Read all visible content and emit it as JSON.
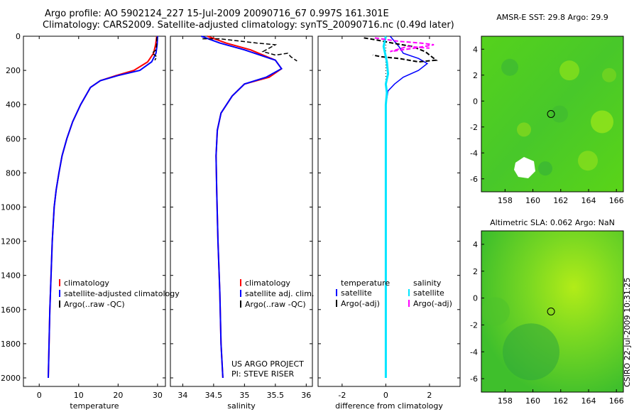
{
  "header": {
    "line1": "Argo profile: AO 5902124_227 15-Jul-2009 20090716_67 0.997S 161.301E",
    "line2": "Climatology: CARS2009. Satellite-adjusted climatology: synTS_20090716.nc (0.49d later)"
  },
  "side_label": "CSIRO 22-Jul-2009 10:31:25",
  "colors": {
    "climatology": "#ff0000",
    "satellite": "#0000ff",
    "argo": "#000000",
    "satellite_salinity": "#00e5ff",
    "argo_salinity": "#ff00ff"
  },
  "chart_data": [
    {
      "type": "line",
      "xlabel": "temperature",
      "ylabel": "",
      "xlim": [
        -4,
        32
      ],
      "ylim": [
        2050,
        0
      ],
      "xticks": [
        "0",
        "10",
        "20",
        "30"
      ],
      "yticks": [
        "0",
        "200",
        "400",
        "600",
        "800",
        "1000",
        "1200",
        "1400",
        "1600",
        "1800",
        "2000"
      ],
      "legend_placement": "lower-right",
      "legend": [
        "climatology",
        "satellite-adjusted climatology",
        "Argo(..raw -QC)"
      ],
      "series": [
        {
          "name": "climatology",
          "x": [
            29.8,
            29.5,
            29.0,
            27.5,
            24.0,
            19.5,
            15.5,
            13.0,
            10.5,
            8.5,
            7.0,
            5.8,
            5.0,
            4.3,
            3.8,
            3.3,
            3.0,
            2.7,
            2.5,
            2.3
          ],
          "y": [
            0,
            50,
            100,
            150,
            200,
            230,
            260,
            300,
            400,
            500,
            600,
            700,
            800,
            900,
            1000,
            1200,
            1400,
            1600,
            1800,
            2000
          ]
        },
        {
          "name": "satellite-adjusted climatology",
          "x": [
            30.0,
            29.9,
            29.6,
            28.5,
            25.5,
            20.0,
            15.5,
            13.0,
            10.5,
            8.5,
            7.0,
            5.8,
            5.0,
            4.3,
            3.8,
            3.3,
            3.0,
            2.7,
            2.5,
            2.3
          ],
          "y": [
            0,
            50,
            100,
            150,
            200,
            230,
            260,
            300,
            400,
            500,
            600,
            700,
            800,
            900,
            1000,
            1200,
            1400,
            1600,
            1800,
            2000
          ]
        },
        {
          "name": "Argo(..raw -QC)",
          "x": [
            29.8,
            29.8,
            29.6,
            28.6,
            29.3,
            29.8,
            29.3
          ],
          "y": [
            5,
            40,
            80,
            100,
            110,
            120,
            140
          ]
        }
      ]
    },
    {
      "type": "line",
      "xlabel": "salinity",
      "ylabel": "",
      "xlim": [
        33.8,
        36.1
      ],
      "ylim": [
        2050,
        0
      ],
      "xticks": [
        "34",
        "34.5",
        "35",
        "35.5",
        "36"
      ],
      "yticks": [],
      "legend_placement": "lower-right",
      "legend": [
        "climatology",
        "satellite adj. clim.",
        "Argo(..raw -QC)"
      ],
      "annotations": [
        "US ARGO PROJECT",
        "PI: STEVE RISER"
      ],
      "series": [
        {
          "name": "climatology",
          "x": [
            34.4,
            34.7,
            35.1,
            35.5,
            35.6,
            35.4,
            35.0,
            34.8,
            34.62,
            34.56,
            34.54,
            34.55,
            34.57,
            34.6,
            34.62,
            34.65
          ],
          "y": [
            0,
            40,
            80,
            140,
            190,
            240,
            280,
            350,
            450,
            550,
            700,
            900,
            1200,
            1500,
            1800,
            2000
          ]
        },
        {
          "name": "satellite adj. clim.",
          "x": [
            34.3,
            34.6,
            35.0,
            35.5,
            35.6,
            35.35,
            35.0,
            34.8,
            34.62,
            34.56,
            34.54,
            34.55,
            34.57,
            34.6,
            34.62,
            34.65
          ],
          "y": [
            0,
            40,
            80,
            140,
            190,
            240,
            280,
            350,
            450,
            550,
            700,
            900,
            1200,
            1500,
            1800,
            2000
          ]
        },
        {
          "name": "Argo(..raw -QC)",
          "x": [
            34.32,
            34.6,
            35.2,
            35.5,
            35.3,
            35.5,
            35.7,
            35.75,
            35.85
          ],
          "y": [
            15,
            15,
            40,
            50,
            90,
            110,
            100,
            120,
            145
          ]
        }
      ]
    },
    {
      "type": "line",
      "xlabel": "difference from climatology",
      "ylabel": "",
      "xlim": [
        -3.1,
        3.4
      ],
      "ylim": [
        2050,
        0
      ],
      "xticks": [
        "-2",
        "0",
        "2"
      ],
      "yticks": [],
      "legend_placement": "lower-center",
      "legend_groups": [
        "temperature",
        "salinity"
      ],
      "legend": [
        "satellite",
        "Argo(-adj)",
        "satellite",
        "Argo(-adj)"
      ],
      "series": [
        {
          "name": "temperature satellite",
          "x": [
            0.2,
            0.6,
            0.8,
            1.5,
            1.9,
            1.5,
            0.8,
            0.4,
            0.1,
            0.0,
            0.0,
            0.0,
            0.0
          ],
          "y": [
            0,
            60,
            100,
            130,
            160,
            200,
            240,
            280,
            320,
            400,
            800,
            1400,
            2000
          ]
        },
        {
          "name": "temperature Argo(-adj)",
          "x": [
            -1.0,
            -0.5,
            0.3,
            1.2,
            1.8,
            2.3,
            1.5,
            0.6,
            -0.2,
            -0.6
          ],
          "y": [
            10,
            20,
            40,
            60,
            90,
            140,
            150,
            130,
            120,
            110
          ]
        },
        {
          "name": "salinity satellite",
          "x": [
            0.0,
            -0.1,
            0.05,
            0.1,
            0.0,
            0.05,
            0.0,
            0.0,
            0.0,
            0.0
          ],
          "y": [
            0,
            60,
            150,
            220,
            280,
            330,
            400,
            800,
            1400,
            2000
          ]
        },
        {
          "name": "salinity Argo(-adj)",
          "x": [
            -0.5,
            0.6,
            1.6,
            2.2,
            1.3,
            0.2,
            1.0,
            2.0
          ],
          "y": [
            10,
            30,
            40,
            50,
            70,
            90,
            60,
            70
          ]
        }
      ]
    },
    {
      "type": "heatmap",
      "title": "AMSR-E SST: 29.8 Argo: 29.9",
      "xlim": [
        156.3,
        166.5
      ],
      "ylim": [
        -7,
        5
      ],
      "xticks": [
        "158",
        "160",
        "162",
        "164",
        "166"
      ],
      "yticks": [
        "4",
        "2",
        "0",
        "-2",
        "-4",
        "-6"
      ],
      "marker": {
        "x": 161.3,
        "y": -1.0
      }
    },
    {
      "type": "heatmap",
      "title": "Altimetric SLA: 0.062 Argo: NaN",
      "xlim": [
        156.3,
        166.5
      ],
      "ylim": [
        -7,
        5
      ],
      "xticks": [
        "158",
        "160",
        "162",
        "164",
        "166"
      ],
      "yticks": [
        "4",
        "2",
        "0",
        "-2",
        "-4",
        "-6"
      ],
      "marker": {
        "x": 161.3,
        "y": -1.0
      }
    }
  ]
}
